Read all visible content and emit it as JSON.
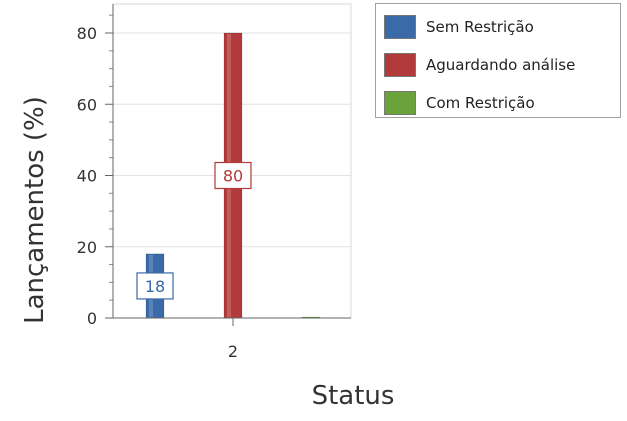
{
  "chart_data": {
    "type": "bar",
    "categories": [
      "2"
    ],
    "series": [
      {
        "name": "Sem Restrição",
        "values": [
          18
        ],
        "color": "#3a6aa8"
      },
      {
        "name": "Aguardando análise",
        "values": [
          80
        ],
        "color": "#b23a3a"
      },
      {
        "name": "Com Restrição",
        "values": [
          0
        ],
        "color": "#6aa33a"
      }
    ],
    "data_labels": [
      "18",
      "80",
      ""
    ],
    "title": "",
    "xlabel": "Status",
    "ylabel": "Lançamentos (%)",
    "ylim": [
      0,
      88
    ],
    "yticks": [
      0,
      20,
      40,
      60,
      80
    ],
    "grid": true,
    "legend_position": "top-right"
  }
}
